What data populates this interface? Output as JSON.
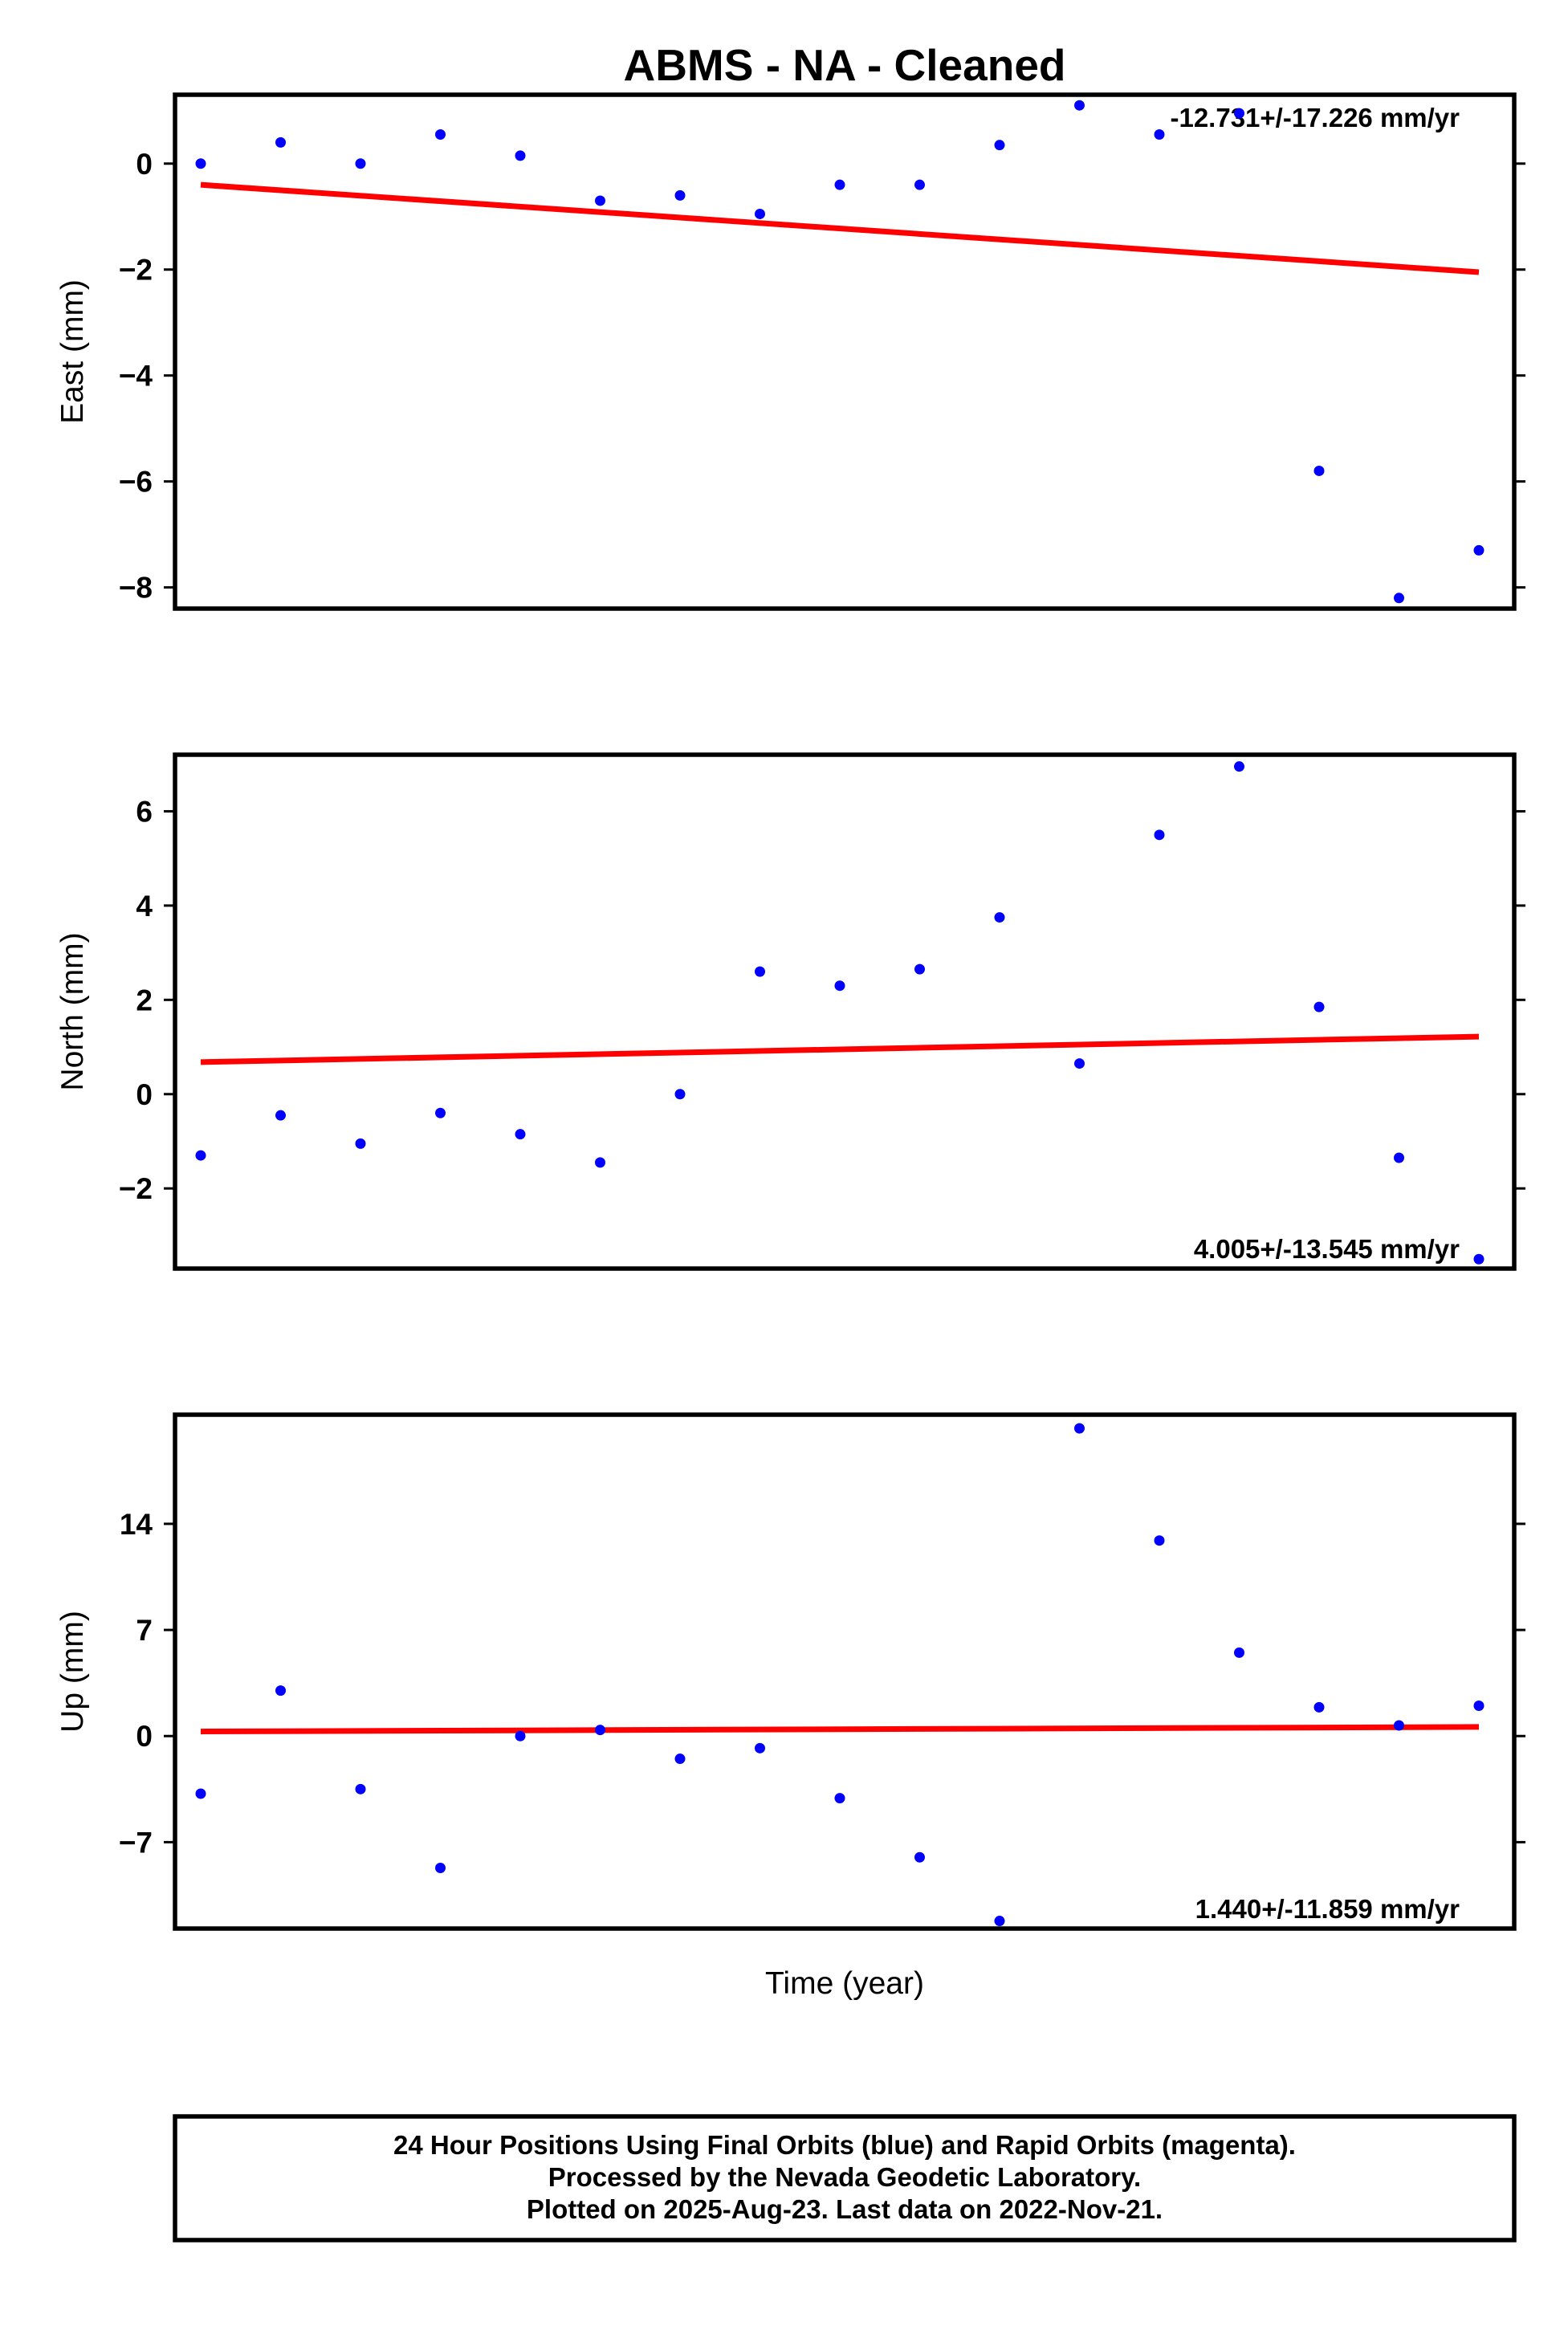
{
  "chart_data": [
    {
      "type": "scatter",
      "title": "ABMS  - NA - Cleaned",
      "ylabel": "East (mm)",
      "xlabel": "",
      "rate_label": "-12.731+/-17.226 mm/yr",
      "rate_position": "top-right",
      "ylim": [
        -8.4,
        1.3
      ],
      "yticks": [
        0,
        -2,
        -4,
        -6,
        -8
      ],
      "ytick_labels": [
        "0",
        "−2",
        "−4",
        "−6",
        "−8"
      ],
      "grid": false,
      "series": [
        {
          "color": "#0000ff",
          "values": [
            0.0,
            0.4,
            0.0,
            0.55,
            0.15,
            -0.7,
            -0.6,
            -0.95,
            -0.4,
            -0.4,
            0.35,
            1.1,
            0.55,
            0.95,
            -5.8,
            -8.2,
            -7.3
          ]
        }
      ],
      "trend": {
        "color": "#ff0000",
        "start": -0.4,
        "end": -2.05
      }
    },
    {
      "type": "scatter",
      "title": "",
      "ylabel": "North (mm)",
      "xlabel": "",
      "rate_label": "4.005+/-13.545 mm/yr",
      "rate_position": "bottom-right",
      "ylim": [
        -3.7,
        7.2
      ],
      "yticks": [
        6,
        4,
        2,
        0,
        -2
      ],
      "ytick_labels": [
        "6",
        "4",
        "2",
        "0",
        "−2"
      ],
      "grid": false,
      "series": [
        {
          "color": "#0000ff",
          "values": [
            -1.3,
            -0.45,
            -1.05,
            -0.4,
            -0.85,
            -1.45,
            0.0,
            2.6,
            2.3,
            2.65,
            3.75,
            0.65,
            5.5,
            6.95,
            1.85,
            -1.35,
            -3.5
          ]
        }
      ],
      "trend": {
        "color": "#ff0000",
        "start": 0.68,
        "end": 1.22
      }
    },
    {
      "type": "scatter",
      "title": "",
      "ylabel": "Up (mm)",
      "xlabel": "Time (year)",
      "rate_label": "1.440+/-11.859 mm/yr",
      "rate_position": "bottom-right",
      "ylim": [
        -12.7,
        21.2
      ],
      "yticks": [
        14,
        7,
        0,
        -7
      ],
      "ytick_labels": [
        "14",
        "7",
        "0",
        "−7"
      ],
      "grid": false,
      "series": [
        {
          "color": "#0000ff",
          "values": [
            -3.8,
            3.0,
            -3.5,
            -8.7,
            0.0,
            0.4,
            -1.5,
            -0.8,
            -4.1,
            -8.0,
            -12.2,
            20.3,
            12.9,
            5.5,
            1.9,
            0.7,
            2.0
          ]
        }
      ],
      "trend": {
        "color": "#ff0000",
        "start": 0.3,
        "end": 0.6
      }
    }
  ],
  "footer": {
    "line1": "24 Hour Positions Using Final Orbits (blue) and Rapid Orbits (magenta).",
    "line2": "Processed by the Nevada Geodetic Laboratory.",
    "line3": "Plotted on 2025-Aug-23. Last data on 2022-Nov-21."
  }
}
